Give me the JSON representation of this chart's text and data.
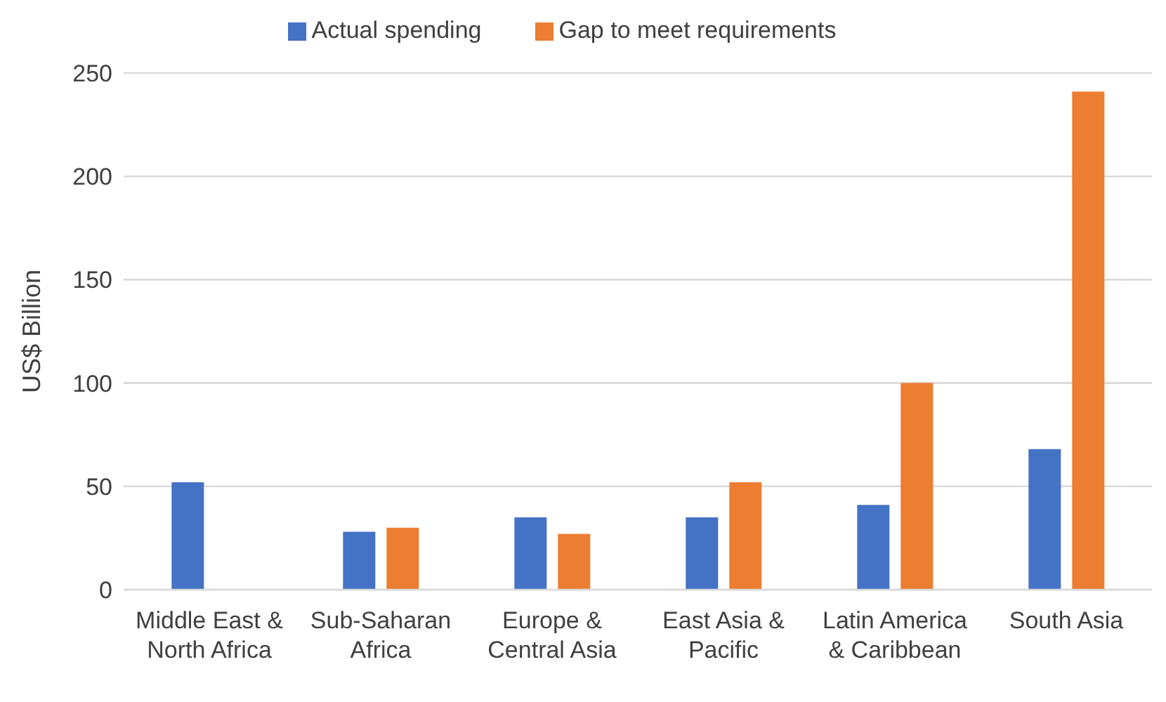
{
  "chart_data": {
    "type": "bar",
    "ylabel": "US$ Billion",
    "categories": [
      "Middle East & North Africa",
      "Sub-Saharan Africa",
      "Europe & Central Asia",
      "East Asia & Pacific",
      "Latin America & Caribbean",
      "South Asia"
    ],
    "series": [
      {
        "name": "Actual spending",
        "color": "#4472c4",
        "values": [
          52,
          28,
          35,
          35,
          41,
          68
        ]
      },
      {
        "name": "Gap to meet requirements",
        "color": "#ed7d31",
        "values": [
          null,
          30,
          27,
          52,
          100,
          241
        ]
      }
    ],
    "ylim": [
      0,
      250
    ],
    "yticks": [
      0,
      50,
      100,
      150,
      200,
      250
    ],
    "grid": "y",
    "legend": "top"
  }
}
